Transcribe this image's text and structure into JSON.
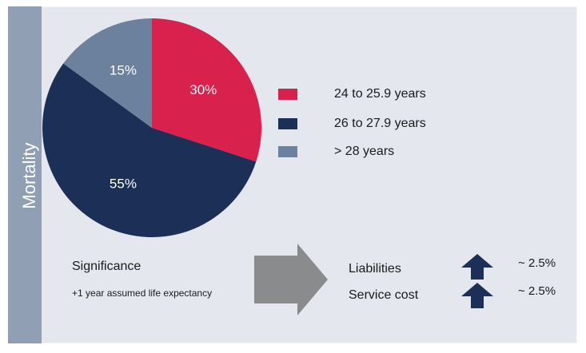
{
  "chart_data": {
    "type": "pie",
    "title": "Mortality",
    "categories": [
      "24 to 25.9 years",
      "26 to 27.9 years",
      "> 28 years"
    ],
    "values": [
      30,
      55,
      15
    ],
    "value_labels": [
      "30%",
      "55%",
      "15%"
    ],
    "colors": [
      "#d9214d",
      "#1b2f57",
      "#6b819d"
    ],
    "legend": "right"
  },
  "significance": {
    "title": "Significance",
    "note": "+1 year assumed life expectancy"
  },
  "impacts": [
    {
      "label": "Liabilities",
      "change": "~ 2.5%"
    },
    {
      "label": "Service cost",
      "change": "~ 2.5%"
    }
  ]
}
